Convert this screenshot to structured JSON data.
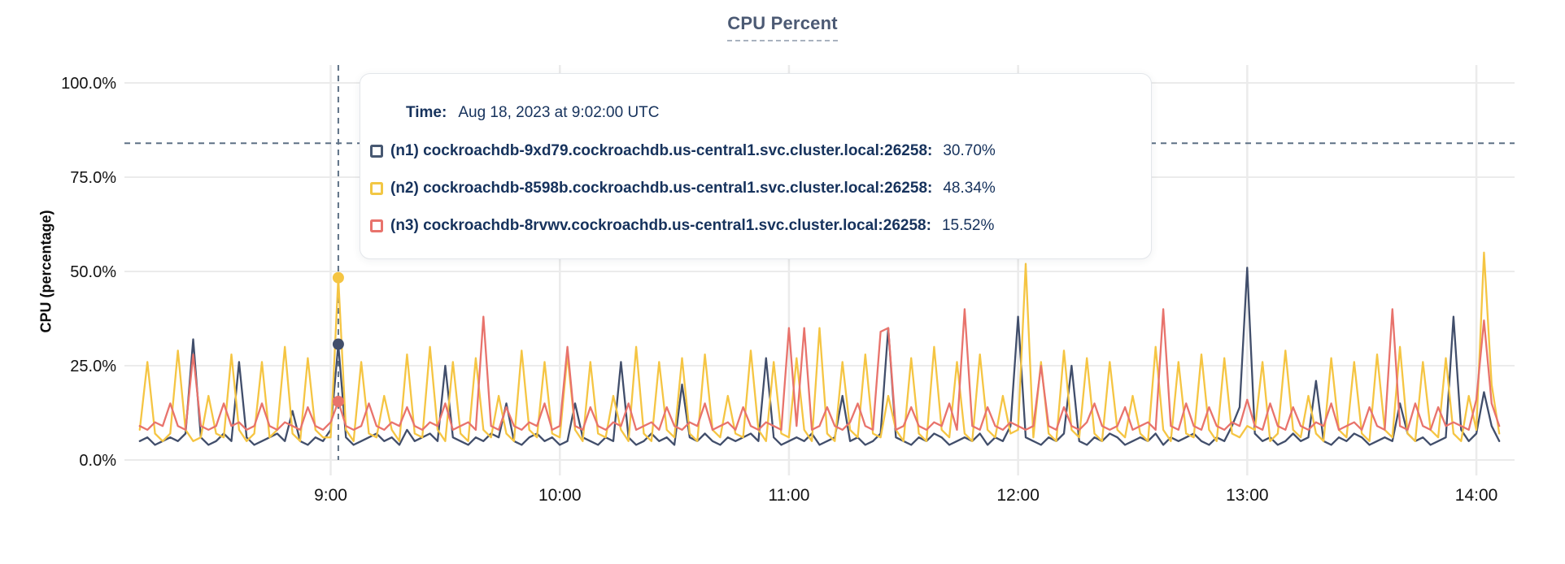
{
  "title": "CPU Percent",
  "y_axis_title": "CPU (percentage)",
  "tooltip": {
    "time_label": "Time:",
    "time_value": "Aug 18, 2023 at 9:02:00 UTC",
    "series": [
      {
        "name": "n1",
        "swatch_color": "#475872",
        "label": "(n1) cockroachdb-9xd79.cockroachdb.us-central1.svc.cluster.local:26258:",
        "value": "30.70%"
      },
      {
        "name": "n2",
        "swatch_color": "#F2C744",
        "label": "(n2) cockroachdb-8598b.cockroachdb.us-central1.svc.cluster.local:26258:",
        "value": "48.34%"
      },
      {
        "name": "n3",
        "swatch_color": "#E8736C",
        "label": "(n3) cockroachdb-8rvwv.cockroachdb.us-central1.svc.cluster.local:26258:",
        "value": "15.52%"
      }
    ]
  },
  "colors": {
    "title": "#4C5A74",
    "gridline": "#EBEBEB",
    "dashed_guides": "#5E7186",
    "tick_text": "#131313",
    "tooltip_text": "#16325C"
  },
  "chart_data": {
    "type": "line",
    "title": "CPU Percent",
    "xlabel": "",
    "ylabel": "CPU (percentage)",
    "ylim": [
      0,
      100
    ],
    "grid": true,
    "legend_position": "tooltip-overlay",
    "x_domain_minutes": [
      486,
      850
    ],
    "x_start_minutes": 490,
    "x_step_minutes": 2,
    "x_tick_minutes": [
      540,
      600,
      660,
      720,
      780,
      840
    ],
    "x_tick_labels": [
      "9:00",
      "10:00",
      "11:00",
      "12:00",
      "13:00",
      "14:00"
    ],
    "y_tick_values": [
      100,
      75,
      50,
      25,
      0
    ],
    "y_tick_labels": [
      "100.0%",
      "75.0%",
      "50.0%",
      "25.0%",
      "0.0%"
    ],
    "threshold_line_percent": 84,
    "hover": {
      "index": 26,
      "time_minutes": 542,
      "time_text": "Aug 18, 2023 at 9:02:00 UTC",
      "values": {
        "n1": 30.7,
        "n2": 48.34,
        "n3": 15.52
      }
    },
    "series": [
      {
        "name": "(n1) cockroachdb-9xd79.cockroachdb.us-central1.svc.cluster.local:26258",
        "color": "#414E6B",
        "values": [
          5,
          6,
          4,
          5,
          6,
          5,
          7,
          32,
          6,
          4,
          5,
          7,
          5,
          26,
          6,
          4,
          5,
          6,
          7,
          5,
          13,
          5,
          4,
          6,
          5,
          8,
          30.7,
          6,
          4,
          5,
          6,
          7,
          5,
          6,
          4,
          8,
          5,
          6,
          7,
          5,
          25,
          6,
          5,
          4,
          6,
          5,
          7,
          6,
          15,
          5,
          4,
          6,
          7,
          5,
          6,
          4,
          5,
          15,
          6,
          5,
          4,
          6,
          5,
          26,
          6,
          4,
          5,
          7,
          5,
          6,
          4,
          20,
          6,
          5,
          7,
          5,
          4,
          6,
          5,
          6,
          7,
          5,
          27,
          6,
          4,
          5,
          6,
          5,
          7,
          4,
          5,
          6,
          17,
          5,
          6,
          4,
          5,
          7,
          35,
          6,
          5,
          4,
          6,
          5,
          7,
          6,
          4,
          5,
          6,
          5,
          7,
          4,
          6,
          5,
          9,
          38,
          6,
          5,
          4,
          6,
          5,
          7,
          25,
          5,
          4,
          6,
          5,
          7,
          6,
          4,
          5,
          6,
          5,
          7,
          4,
          6,
          5,
          6,
          7,
          5,
          4,
          6,
          5,
          9,
          14,
          51,
          7,
          5,
          6,
          4,
          5,
          7,
          5,
          6,
          21,
          5,
          4,
          6,
          5,
          7,
          6,
          4,
          5,
          6,
          5,
          15,
          7,
          5,
          6,
          4,
          5,
          6,
          38,
          8,
          5,
          7,
          18,
          9,
          5
        ]
      },
      {
        "name": "(n2) cockroachdb-8598b.cockroachdb.us-central1.svc.cluster.local:26258",
        "color": "#F5C543",
        "values": [
          8,
          26,
          7,
          5,
          7,
          29,
          8,
          5,
          6,
          17,
          7,
          6,
          28,
          8,
          5,
          7,
          26,
          6,
          8,
          30,
          7,
          5,
          27,
          8,
          6,
          6,
          48.3,
          8,
          5,
          26,
          7,
          6,
          17,
          8,
          5,
          28,
          7,
          6,
          30,
          8,
          5,
          26,
          7,
          5,
          27,
          8,
          6,
          17,
          7,
          5,
          29,
          8,
          6,
          26,
          7,
          6,
          28,
          8,
          5,
          26,
          7,
          6,
          17,
          8,
          5,
          30,
          7,
          5,
          26,
          8,
          6,
          27,
          7,
          5,
          28,
          8,
          6,
          17,
          7,
          6,
          29,
          8,
          5,
          26,
          7,
          6,
          27,
          8,
          5,
          35,
          7,
          5,
          26,
          8,
          6,
          28,
          7,
          6,
          17,
          8,
          5,
          27,
          7,
          5,
          30,
          8,
          6,
          26,
          7,
          5,
          28,
          8,
          6,
          17,
          7,
          8,
          52,
          6,
          26,
          7,
          5,
          29,
          8,
          6,
          27,
          7,
          5,
          26,
          8,
          6,
          17,
          7,
          5,
          30,
          8,
          5,
          26,
          7,
          6,
          28,
          8,
          5,
          27,
          7,
          6,
          9,
          8,
          26,
          5,
          7,
          29,
          8,
          6,
          17,
          7,
          5,
          27,
          8,
          6,
          26,
          7,
          5,
          28,
          8,
          6,
          30,
          7,
          5,
          26,
          8,
          6,
          27,
          7,
          5,
          17,
          8,
          55,
          20,
          7
        ]
      },
      {
        "name": "(n3) cockroachdb-8rvwv.cockroachdb.us-central1.svc.cluster.local:26258",
        "color": "#E8736C",
        "values": [
          9,
          8,
          10,
          9,
          15,
          9,
          8,
          28,
          9,
          8,
          9,
          15,
          9,
          10,
          8,
          9,
          15,
          9,
          8,
          10,
          9,
          8,
          14,
          9,
          8,
          10,
          15.5,
          9,
          8,
          9,
          15,
          9,
          8,
          10,
          9,
          14,
          9,
          8,
          10,
          9,
          15,
          8,
          9,
          10,
          8,
          38,
          9,
          8,
          14,
          9,
          8,
          10,
          9,
          15,
          8,
          9,
          30,
          9,
          8,
          14,
          9,
          8,
          10,
          9,
          15,
          8,
          9,
          10,
          8,
          14,
          9,
          8,
          10,
          9,
          15,
          8,
          9,
          10,
          8,
          14,
          9,
          8,
          10,
          9,
          8,
          35,
          9,
          35,
          8,
          9,
          14,
          9,
          8,
          10,
          15,
          9,
          8,
          34,
          35,
          8,
          9,
          14,
          9,
          8,
          10,
          9,
          15,
          8,
          40,
          9,
          8,
          14,
          9,
          8,
          10,
          9,
          8,
          9,
          25,
          9,
          8,
          14,
          9,
          8,
          10,
          15,
          9,
          8,
          9,
          14,
          8,
          9,
          10,
          8,
          40,
          9,
          8,
          15,
          9,
          8,
          14,
          9,
          8,
          10,
          9,
          16,
          9,
          8,
          15,
          9,
          8,
          14,
          9,
          8,
          10,
          9,
          15,
          8,
          9,
          10,
          8,
          14,
          9,
          8,
          40,
          9,
          8,
          15,
          9,
          8,
          14,
          9,
          10,
          9,
          8,
          16,
          37,
          15,
          9
        ]
      }
    ]
  }
}
